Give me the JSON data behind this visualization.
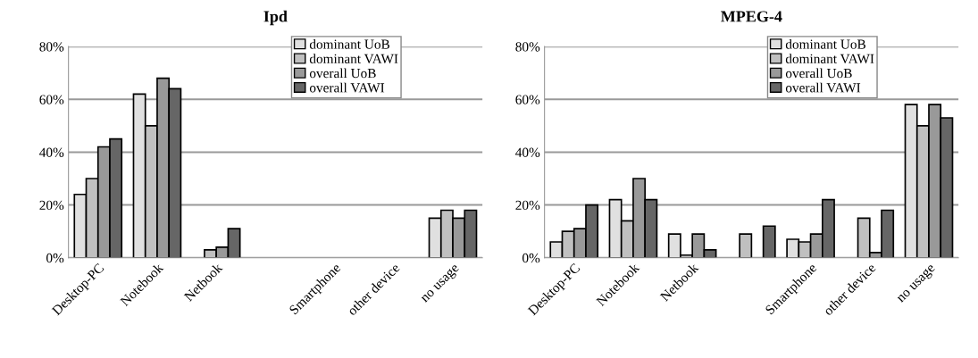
{
  "chart_data": [
    {
      "type": "bar",
      "title": "Ipd",
      "categories": [
        "Desktop-PC",
        "Notebook",
        "Netbook",
        null,
        "Smartphone",
        "other device",
        "no usage"
      ],
      "series": [
        {
          "name": "dominant UoB",
          "color": "#e0e0e0",
          "values": [
            24,
            62,
            0,
            0,
            0,
            0,
            15
          ]
        },
        {
          "name": "dominant VAWI",
          "color": "#c0c0c0",
          "values": [
            30,
            50,
            3,
            0,
            0,
            0,
            18
          ]
        },
        {
          "name": "overall UoB",
          "color": "#999999",
          "values": [
            42,
            68,
            4,
            0,
            0,
            0,
            15
          ]
        },
        {
          "name": "overall VAWI",
          "color": "#666666",
          "values": [
            45,
            64,
            11,
            0,
            0,
            0,
            18
          ]
        }
      ],
      "ylim": [
        0,
        80
      ],
      "yticks": [
        {
          "value": 0,
          "label": "0%"
        },
        {
          "value": 20,
          "label": "20%"
        },
        {
          "value": 40,
          "label": "40%"
        },
        {
          "value": 60,
          "label": "60%"
        },
        {
          "value": 80,
          "label": "80%"
        }
      ],
      "grid": "y",
      "legend": "top right"
    },
    {
      "type": "bar",
      "title": "MPEG-4",
      "categories": [
        "Desktop-PC",
        "Notebook",
        "Netbook",
        null,
        "Smartphone",
        "other device",
        "no usage"
      ],
      "series": [
        {
          "name": "dominant UoB",
          "color": "#e0e0e0",
          "values": [
            6,
            22,
            9,
            0,
            7,
            0,
            58
          ]
        },
        {
          "name": "dominant VAWI",
          "color": "#c0c0c0",
          "values": [
            10,
            14,
            1,
            9,
            6,
            15,
            50
          ]
        },
        {
          "name": "overall UoB",
          "color": "#999999",
          "values": [
            11,
            30,
            9,
            0,
            9,
            2,
            58
          ]
        },
        {
          "name": "overall VAWI",
          "color": "#666666",
          "values": [
            20,
            22,
            3,
            12,
            22,
            18,
            53
          ]
        }
      ],
      "ylim": [
        0,
        80
      ],
      "yticks": [
        {
          "value": 0,
          "label": "0%"
        },
        {
          "value": 20,
          "label": "20%"
        },
        {
          "value": 40,
          "label": "40%"
        },
        {
          "value": 60,
          "label": "60%"
        },
        {
          "value": 80,
          "label": "80%"
        }
      ],
      "grid": "y",
      "legend": "top right"
    }
  ]
}
